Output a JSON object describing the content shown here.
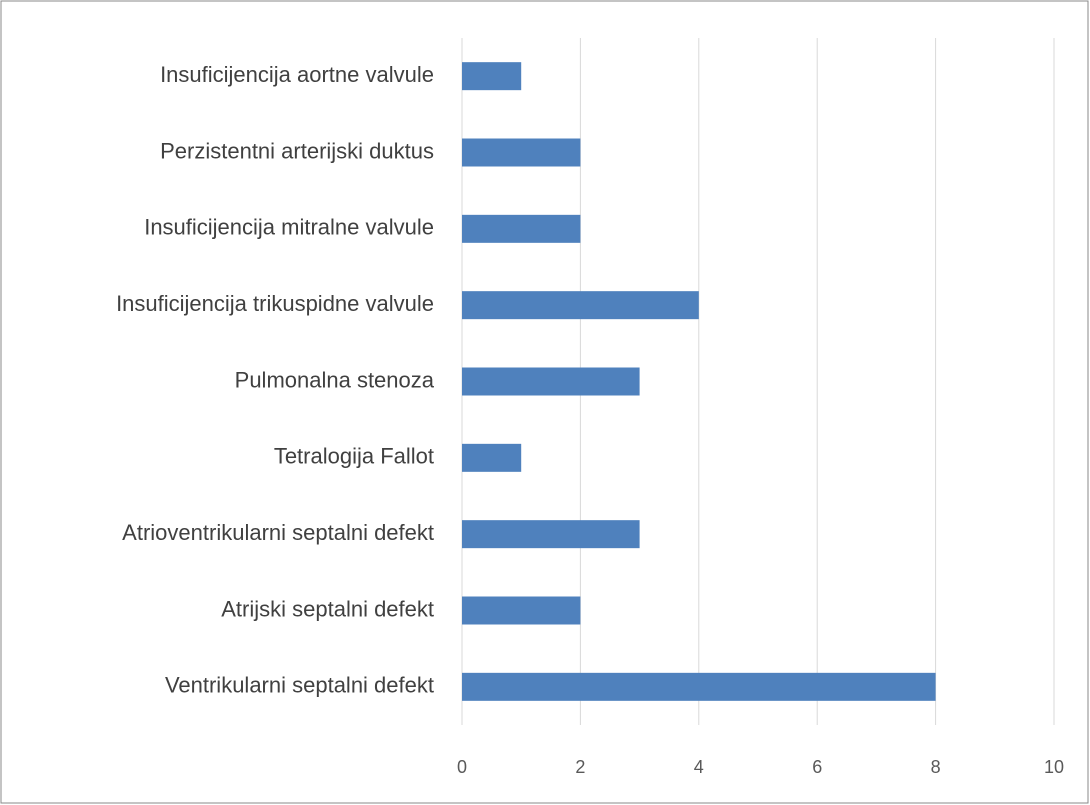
{
  "chart_data": {
    "type": "bar",
    "orientation": "horizontal",
    "categories": [
      "Insuficijencija aortne valvule",
      "Perzistentni arterijski duktus",
      "Insuficijencija mitralne valvule",
      "Insuficijencija trikuspidne valvule",
      "Pulmonalna stenoza",
      "Tetralogija Fallot",
      "Atrioventrikularni septalni defekt",
      "Atrijski septalni defekt",
      "Ventrikularni septalni defekt"
    ],
    "values": [
      1,
      2,
      2,
      4,
      3,
      1,
      3,
      2,
      8
    ],
    "color": "#4f81bd",
    "xlim": [
      0,
      10
    ],
    "xticks": [
      0,
      2,
      4,
      6,
      8,
      10
    ],
    "grid": true
  }
}
